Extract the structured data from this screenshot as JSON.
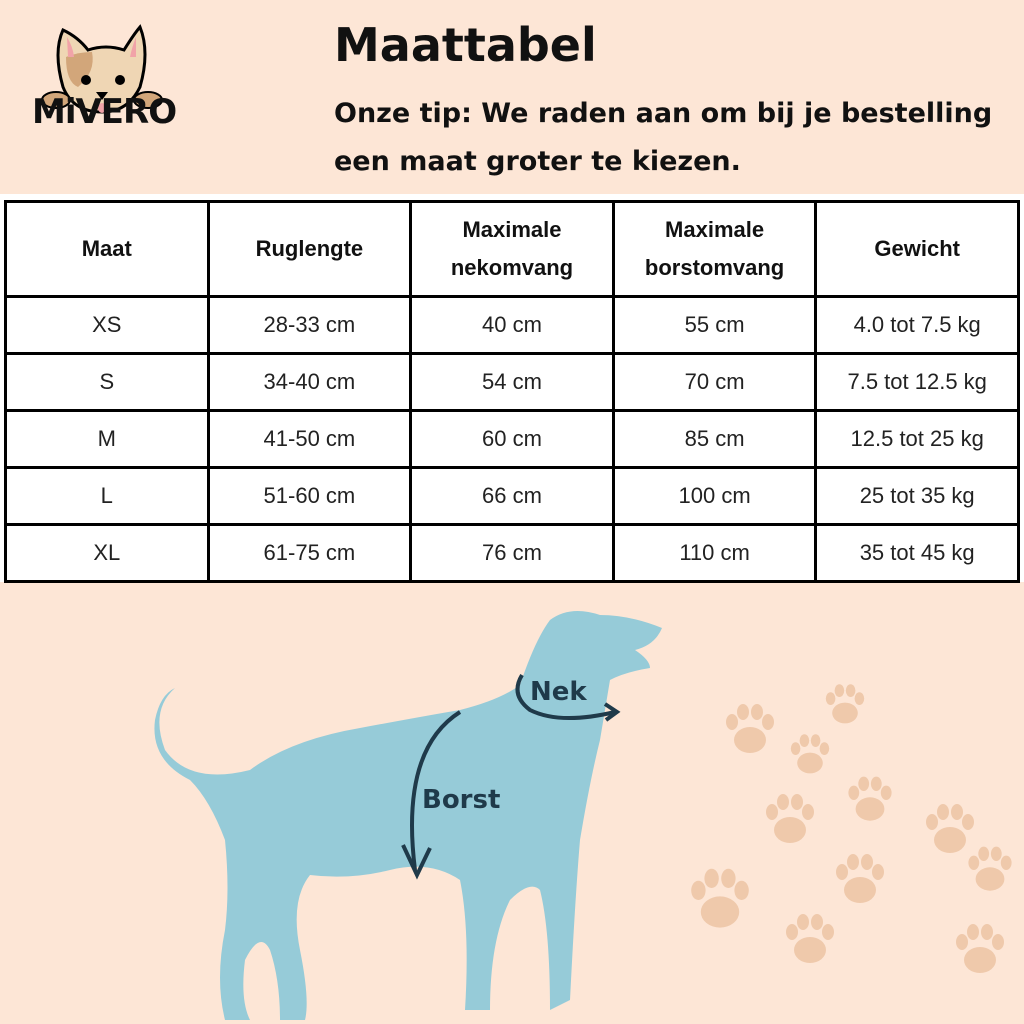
{
  "brand": {
    "logo_text": "MiVERO"
  },
  "header": {
    "title": "Maattabel",
    "tip": "Onze tip: We raden aan om bij je bestelling een maat groter te kiezen."
  },
  "table": {
    "columns": [
      "Maat",
      "Ruglengte",
      "Maximale nekomvang",
      "Maximale borstomvang",
      "Gewicht"
    ],
    "rows": [
      [
        "XS",
        "28-33 cm",
        "40 cm",
        "55 cm",
        "4.0 tot 7.5 kg"
      ],
      [
        "S",
        "34-40 cm",
        "54 cm",
        "70 cm",
        "7.5 tot 12.5 kg"
      ],
      [
        "M",
        "41-50 cm",
        "60 cm",
        "85 cm",
        "12.5 tot 25 kg"
      ],
      [
        "L",
        "51-60 cm",
        "66 cm",
        "100 cm",
        "25 tot 35 kg"
      ],
      [
        "XL",
        "61-75 cm",
        "76 cm",
        "110 cm",
        "35 tot 45 kg"
      ]
    ]
  },
  "diagram": {
    "neck_label": "Nek",
    "chest_label": "Borst"
  },
  "colors": {
    "background": "#fde6d6",
    "dog": "#96cbd8",
    "paw": "#efc9ab"
  }
}
